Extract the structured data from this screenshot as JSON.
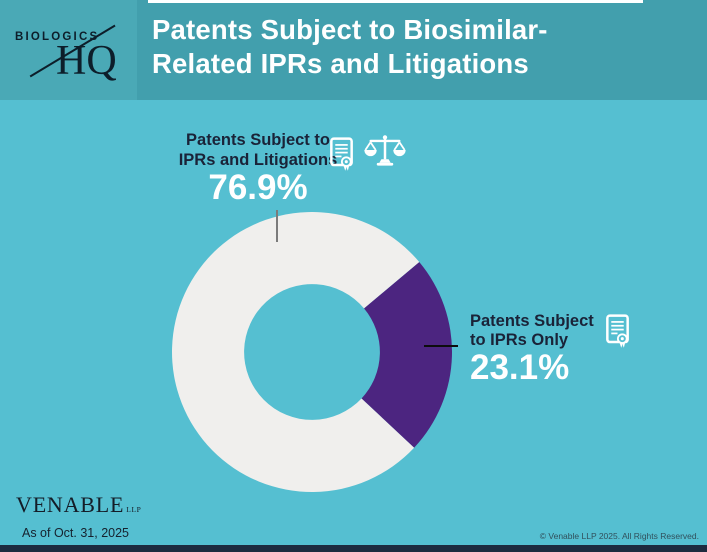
{
  "header": {
    "logo": {
      "word_top": "BIOLOGICS",
      "word_bottom": "HQ"
    },
    "title_line1": "Patents Subject to Biosimilar-",
    "title_line2": "Related IPRs and Litigations"
  },
  "chart_data": {
    "type": "pie",
    "subtype": "donut",
    "title": "Patents Subject to Biosimilar-Related IPRs and Litigations",
    "categories": [
      "Patents Subject to IPRs and Litigations",
      "Patents Subject to IPRs Only"
    ],
    "values": [
      76.9,
      23.1
    ],
    "unit": "%",
    "segment_colors": [
      "#F0EFED",
      "#4C2580"
    ],
    "layout": {
      "inner_radius_ratio": 0.485,
      "minor_segment_start_deg_cw_from_top": 50,
      "legend": "none",
      "data_labels": "outside with leader lines"
    }
  },
  "callouts": {
    "left": {
      "line1": "Patents Subject to",
      "line2": "IPRs and Litigations",
      "pct": "76.9%"
    },
    "right": {
      "line1": "Patents Subject",
      "line2": "to IPRs Only",
      "pct": "23.1%"
    }
  },
  "icons": {
    "left_group": [
      "certificate-document-icon",
      "scales-of-justice-icon"
    ],
    "right_group": [
      "certificate-document-icon"
    ]
  },
  "footer": {
    "firm_word": "VENABLE",
    "firm_suffix": "LLP",
    "as_of": "As of Oct. 31, 2025",
    "copyright": "© Venable LLP 2025. All Rights Reserved."
  },
  "colors": {
    "body_teal": "#55BFD1",
    "header_teal": "#429FAD",
    "logo_block_teal": "#4AA9B6",
    "segment_white": "#F0EFED",
    "segment_purple": "#4C2580",
    "label_dark": "#1A2338",
    "footer_rule": "#1D2B3F"
  }
}
